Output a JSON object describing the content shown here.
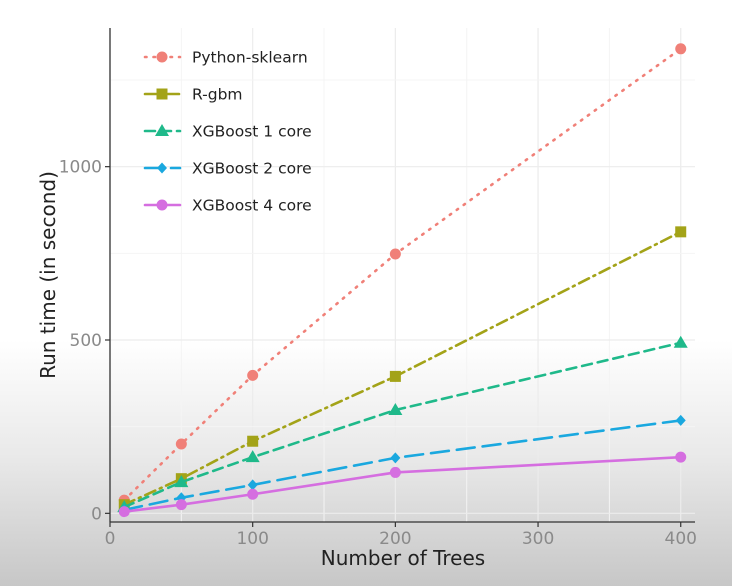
{
  "chart_data": {
    "type": "line",
    "xlabel": "Number of Trees",
    "ylabel": "Run time (in second)",
    "x": [
      10,
      50,
      100,
      200,
      400
    ],
    "xlim": [
      0,
      410
    ],
    "ylim": [
      -25,
      1400
    ],
    "xticks": [
      0,
      100,
      200,
      300,
      400
    ],
    "yticks": [
      0,
      500,
      1000
    ],
    "grid": true,
    "legend_position": "top-left",
    "series": [
      {
        "name": "Python-sklearn",
        "values": [
          38,
          200,
          398,
          748,
          1340
        ],
        "color": "#f08078",
        "dash": "1.5 7",
        "marker": "circle"
      },
      {
        "name": "R-gbm",
        "values": [
          25,
          100,
          208,
          395,
          812
        ],
        "color": "#a3a318",
        "dash": "11 5 2 5",
        "marker": "square"
      },
      {
        "name": "XGBoost 1 core",
        "values": [
          18,
          90,
          162,
          298,
          492
        ],
        "color": "#1fb98a",
        "dash": "10 6",
        "marker": "triangle"
      },
      {
        "name": "XGBoost 2 core",
        "values": [
          10,
          45,
          82,
          160,
          268
        ],
        "color": "#1aa8df",
        "dash": "18 8",
        "marker": "diamond"
      },
      {
        "name": "XGBoost 4 core",
        "values": [
          5,
          25,
          55,
          118,
          162
        ],
        "color": "#d56ee0",
        "dash": "",
        "marker": "circle"
      }
    ]
  }
}
